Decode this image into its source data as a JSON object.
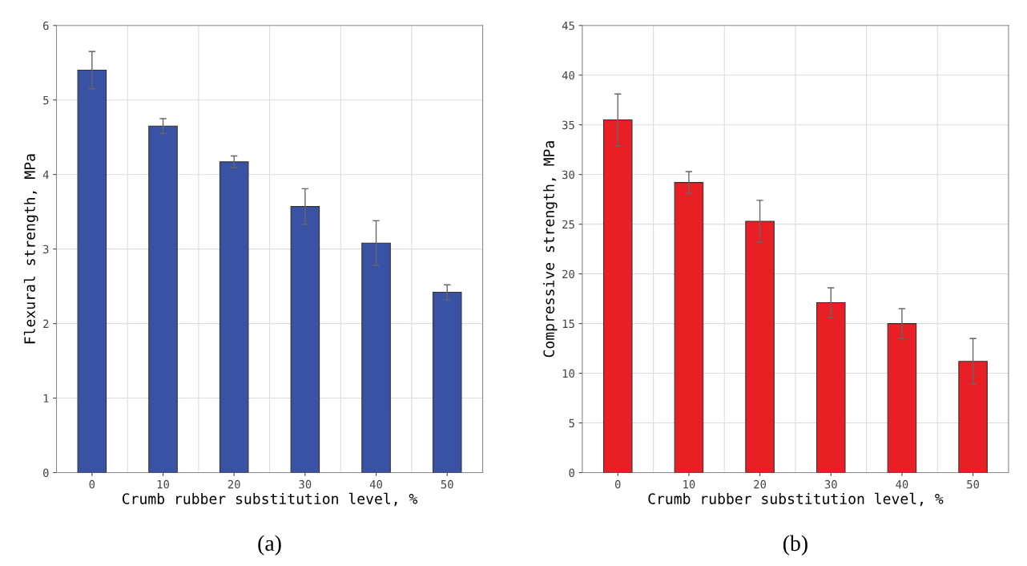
{
  "chart_data": [
    {
      "type": "bar",
      "categories": [
        "0",
        "10",
        "20",
        "30",
        "40",
        "50"
      ],
      "xlabel": "Crumb rubber substitution level, %",
      "ylabel": "Flexural strength, MPa",
      "annotations": [
        "(a)"
      ],
      "series": [
        {
          "color": "#3a52a3",
          "values": [
            5.4,
            4.65,
            4.17,
            3.57,
            3.08,
            2.42
          ],
          "errors": [
            0.25,
            0.1,
            0.08,
            0.24,
            0.3,
            0.1
          ]
        }
      ],
      "ylim": [
        0,
        6
      ],
      "yticks": [
        0,
        1,
        2,
        3,
        4,
        5,
        6
      ],
      "grid": true
    },
    {
      "type": "bar",
      "categories": [
        "0",
        "10",
        "20",
        "30",
        "40",
        "50"
      ],
      "xlabel": "Crumb rubber substitution level, %",
      "ylabel": "Compressive strength, MPa",
      "annotations": [
        "(b)"
      ],
      "series": [
        {
          "color": "#e81f25",
          "values": [
            35.5,
            29.2,
            25.3,
            17.1,
            15.0,
            11.2
          ],
          "errors": [
            2.6,
            1.1,
            2.1,
            1.5,
            1.5,
            2.3
          ]
        }
      ],
      "ylim": [
        0,
        45
      ],
      "yticks": [
        0,
        5,
        10,
        15,
        20,
        25,
        30,
        35,
        40,
        45
      ],
      "grid": true
    }
  ]
}
